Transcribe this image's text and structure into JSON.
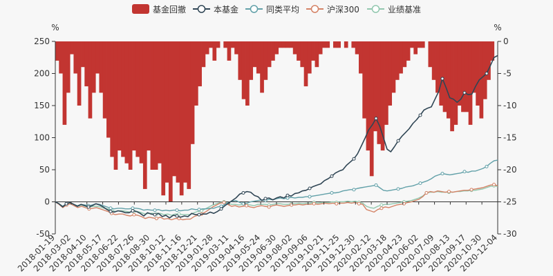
{
  "chart_data": {
    "type": "line",
    "legend": [
      {
        "name": "基金回撤",
        "kind": "bar",
        "color": "#c23531"
      },
      {
        "name": "本基金",
        "kind": "line",
        "color": "#2f4554"
      },
      {
        "name": "同类平均",
        "kind": "line",
        "color": "#61a0a8"
      },
      {
        "name": "沪深300",
        "kind": "line",
        "color": "#d48265"
      },
      {
        "name": "业绩基准",
        "kind": "line",
        "color": "#91c7ae"
      }
    ],
    "legend_position": "top-center",
    "y_left": {
      "unit": "%",
      "min": -50,
      "max": 250,
      "ticks": [
        250,
        200,
        150,
        100,
        50,
        0,
        -50
      ]
    },
    "y_right": {
      "unit": "%",
      "min": -30,
      "max": 0,
      "ticks": [
        0,
        -5,
        -10,
        -15,
        -20,
        -25,
        -30
      ]
    },
    "x_ticks": [
      "2018-01-19",
      "2018-03-02",
      "2018-04-10",
      "2018-05-17",
      "2018-06-22",
      "2018-07-26",
      "2018-08-30",
      "2018-10-12",
      "2018-11-16",
      "2018-12-21",
      "2019-01-28",
      "2019-03-11",
      "2019-04-16",
      "2019-05-24",
      "2019-06-30",
      "2019-08-02",
      "2019-09-06",
      "2019-10-21",
      "2019-11-25",
      "2019-12-30",
      "2020-02-12",
      "2020-03-18",
      "2020-04-23",
      "2020-06-02",
      "2020-07-09",
      "2020-08-13",
      "2020-09-17",
      "2020-10-30",
      "2020-12-04"
    ],
    "series": [
      {
        "name": "本基金",
        "axis": "left",
        "values": [
          0,
          -3,
          -8,
          -3,
          -1,
          -4,
          -7,
          -4,
          -6,
          -8,
          -6,
          -3,
          -5,
          -8,
          -12,
          -15,
          -16,
          -14,
          -15,
          -17,
          -17,
          -14,
          -15,
          -18,
          -22,
          -17,
          -19,
          -20,
          -18,
          -23,
          -21,
          -25,
          -21,
          -22,
          -24,
          -22,
          -23,
          -18,
          -20,
          -20,
          -19,
          -19,
          -16,
          -18,
          -15,
          -11,
          -6,
          -2,
          2,
          6,
          12,
          14,
          16,
          15,
          10,
          8,
          2,
          5,
          6,
          3,
          6,
          8,
          6,
          10,
          9,
          13,
          14,
          17,
          18,
          21,
          24,
          26,
          28,
          33,
          36,
          40,
          45,
          48,
          50,
          57,
          62,
          67,
          75,
          87,
          99,
          112,
          120,
          130,
          118,
          100,
          82,
          78,
          86,
          95,
          102,
          108,
          114,
          122,
          128,
          135,
          143,
          146,
          148,
          160,
          172,
          192,
          178,
          162,
          160,
          155,
          160,
          170,
          167,
          168,
          180,
          190,
          195,
          200,
          212,
          225,
          228
        ]
      },
      {
        "name": "同类平均",
        "axis": "left",
        "values": [
          0,
          -3,
          -7,
          -3,
          -1,
          -4,
          -6,
          -4,
          -5,
          -6,
          -5,
          -3,
          -4,
          -6,
          -8,
          -10,
          -11,
          -10,
          -10,
          -11,
          -11,
          -10,
          -10,
          -11,
          -13,
          -12,
          -13,
          -13,
          -12,
          -14,
          -13,
          -14,
          -13,
          -13,
          -14,
          -13,
          -13,
          -11,
          -12,
          -12,
          -11,
          -11,
          -10,
          -10,
          -8,
          -7,
          -4,
          -1,
          1,
          2,
          -1,
          -3,
          -2,
          0,
          1,
          2,
          3,
          2,
          4,
          3,
          5,
          6,
          5,
          6,
          7,
          6,
          7,
          7,
          8,
          8,
          9,
          10,
          11,
          12,
          13,
          14,
          14,
          15,
          17,
          18,
          19,
          19,
          21,
          22,
          23,
          24,
          25,
          26,
          22,
          18,
          17,
          18,
          19,
          20,
          21,
          23,
          24,
          25,
          27,
          29,
          31,
          33,
          36,
          40,
          42,
          44,
          43,
          42,
          43,
          44,
          45,
          47,
          46,
          48,
          48,
          50,
          52,
          55,
          60,
          64,
          65
        ]
      },
      {
        "name": "沪深300",
        "axis": "left",
        "values": [
          0,
          -4,
          -9,
          -5,
          -3,
          -6,
          -9,
          -7,
          -9,
          -11,
          -10,
          -9,
          -11,
          -13,
          -15,
          -18,
          -20,
          -19,
          -19,
          -21,
          -22,
          -20,
          -21,
          -23,
          -26,
          -24,
          -25,
          -26,
          -24,
          -27,
          -26,
          -28,
          -26,
          -26,
          -28,
          -27,
          -27,
          -23,
          -21,
          -19,
          -16,
          -12,
          -8,
          -5,
          -2,
          -1,
          -4,
          -7,
          -6,
          -8,
          -7,
          -6,
          -8,
          -9,
          -7,
          -6,
          -7,
          -8,
          -6,
          -5,
          -6,
          -7,
          -6,
          -5,
          -5,
          -4,
          -5,
          -4,
          -4,
          -3,
          -4,
          -3,
          -2,
          -3,
          -2,
          -3,
          -2,
          -2,
          -1,
          -2,
          -1,
          -3,
          -4,
          -12,
          -14,
          -16,
          -12,
          -10,
          -8,
          -9,
          -7,
          -5,
          -4,
          -3,
          -1,
          0,
          2,
          4,
          8,
          14,
          16,
          15,
          17,
          16,
          15,
          16,
          15,
          16,
          17,
          18,
          18,
          19,
          20,
          21,
          22,
          24,
          26,
          27,
          25
        ]
      },
      {
        "name": "业绩基准",
        "axis": "left",
        "values": [
          0,
          -3,
          -7,
          -4,
          -2,
          -4,
          -7,
          -5,
          -7,
          -8,
          -7,
          -7,
          -8,
          -10,
          -11,
          -13,
          -15,
          -14,
          -14,
          -15,
          -16,
          -15,
          -15,
          -17,
          -19,
          -18,
          -18,
          -19,
          -18,
          -20,
          -19,
          -21,
          -19,
          -19,
          -20,
          -20,
          -20,
          -17,
          -15,
          -14,
          -11,
          -8,
          -5,
          -3,
          -1,
          0,
          -2,
          -4,
          -4,
          -5,
          -4,
          -4,
          -5,
          -6,
          -4,
          -4,
          -4,
          -5,
          -4,
          -3,
          -3,
          -4,
          -4,
          -3,
          -3,
          -2,
          -3,
          -2,
          -2,
          -1,
          -2,
          -1,
          -1,
          -1,
          0,
          -1,
          0,
          0,
          1,
          0,
          1,
          -1,
          -2,
          -7,
          -9,
          -10,
          -7,
          -5,
          -4,
          -4,
          -3,
          -2,
          -1,
          0,
          1,
          2,
          4,
          6,
          9,
          14,
          15,
          15,
          16,
          15,
          15,
          15,
          15,
          16,
          16,
          17,
          17,
          18,
          18,
          19,
          20,
          22,
          24,
          25,
          24
        ]
      },
      {
        "name": "基金回撤",
        "axis": "right",
        "values": [
          -3,
          -5,
          -13,
          -8,
          -2,
          -5,
          -10,
          -4,
          -7,
          -12,
          -8,
          -5,
          -8,
          -12,
          -15,
          -18,
          -20,
          -17,
          -18,
          -19,
          -20,
          -17,
          -18,
          -19,
          -23,
          -17,
          -20,
          -20,
          -19,
          -24,
          -22,
          -25,
          -21,
          -22,
          -24,
          -22,
          -23,
          -16,
          -10,
          -7,
          -4,
          -2,
          -1,
          -3,
          -1,
          0,
          -1,
          -3,
          -1,
          -2,
          -6,
          -9,
          -10,
          -6,
          -4,
          -5,
          -8,
          -6,
          -4,
          -3,
          -2,
          -1,
          -1,
          -1,
          -1,
          -2,
          -3,
          -4,
          -7,
          -5,
          -3,
          -4,
          -2,
          -1,
          -1,
          0,
          -1,
          -1,
          0,
          -1,
          0,
          -1,
          -2,
          -5,
          -12,
          -17,
          -21,
          -14,
          -16,
          -17,
          -13,
          -10,
          -8,
          -6,
          -5,
          -4,
          -3,
          -1,
          -2,
          -1,
          -1,
          0,
          -4,
          -6,
          -8,
          -10,
          -11,
          -12,
          -14,
          -13,
          -10,
          -11,
          -11,
          -13,
          -8,
          -10,
          -12,
          -9,
          -6,
          -3,
          0
        ]
      }
    ]
  }
}
